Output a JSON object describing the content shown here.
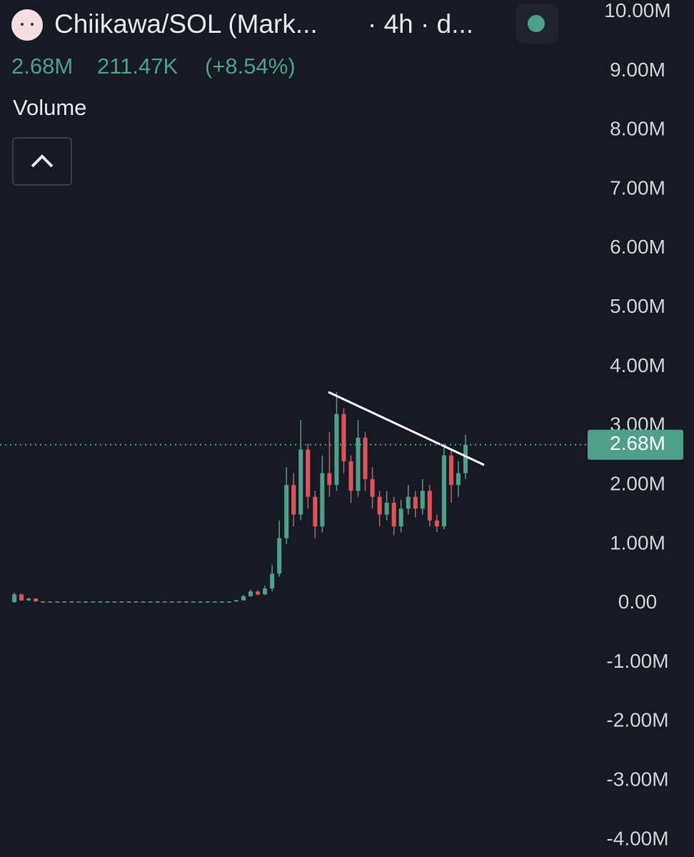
{
  "chart_data": {
    "type": "candlestick",
    "header": {
      "title": "Chiikawa/SOL (Mark...",
      "interval": "· 4h · d...",
      "price": "2.68M",
      "change": "211.47K",
      "change_pct": "(+8.54%)",
      "study": "Volume"
    },
    "up_color": "#4fa08b",
    "down_color": "#e0525a",
    "open": [
      0.02,
      0.15,
      0.05,
      0.08,
      0.03,
      0.03,
      0.03,
      0.03,
      0.03,
      0.03,
      0.03,
      0.03,
      0.03,
      0.03,
      0.03,
      0.03,
      0.03,
      0.03,
      0.03,
      0.03,
      0.03,
      0.03,
      0.03,
      0.03,
      0.03,
      0.03,
      0.03,
      0.03,
      0.03,
      0.03,
      0.03,
      0.03,
      0.05,
      0.12,
      0.2,
      0.15,
      0.25,
      0.5,
      1.1,
      2.0,
      1.5,
      2.6,
      1.8,
      1.3,
      2.2,
      2.0,
      3.2,
      2.4,
      1.9,
      2.8,
      2.1,
      1.8,
      1.5,
      1.7,
      1.3,
      1.6,
      1.8,
      1.6,
      1.9,
      1.4,
      1.3,
      2.5,
      2.0,
      2.2
    ],
    "high": [
      0.18,
      0.16,
      0.09,
      0.085,
      0.035,
      0.035,
      0.035,
      0.035,
      0.035,
      0.035,
      0.035,
      0.035,
      0.035,
      0.035,
      0.035,
      0.035,
      0.035,
      0.035,
      0.035,
      0.035,
      0.035,
      0.035,
      0.035,
      0.035,
      0.035,
      0.035,
      0.035,
      0.035,
      0.035,
      0.035,
      0.035,
      0.06,
      0.14,
      0.23,
      0.22,
      0.3,
      0.65,
      1.4,
      2.3,
      2.2,
      3.1,
      2.7,
      1.9,
      2.5,
      2.9,
      3.57,
      3.3,
      2.5,
      3.1,
      2.9,
      2.3,
      1.9,
      1.9,
      1.8,
      1.75,
      2.0,
      1.9,
      2.1,
      2.0,
      1.5,
      2.7,
      2.6,
      2.4,
      2.85
    ],
    "low": [
      0.01,
      0.04,
      0.04,
      0.025,
      0.025,
      0.025,
      0.025,
      0.025,
      0.025,
      0.025,
      0.025,
      0.025,
      0.025,
      0.025,
      0.025,
      0.025,
      0.025,
      0.025,
      0.025,
      0.025,
      0.025,
      0.025,
      0.025,
      0.025,
      0.025,
      0.025,
      0.025,
      0.025,
      0.025,
      0.025,
      0.025,
      0.025,
      0.045,
      0.11,
      0.13,
      0.14,
      0.2,
      0.45,
      1.0,
      1.3,
      1.4,
      1.6,
      1.1,
      1.2,
      1.8,
      1.9,
      2.2,
      1.7,
      1.8,
      1.9,
      1.6,
      1.3,
      1.4,
      1.15,
      1.2,
      1.5,
      1.45,
      1.5,
      1.3,
      1.2,
      1.25,
      1.7,
      1.8,
      2.1
    ],
    "close": [
      0.15,
      0.05,
      0.08,
      0.03,
      0.03,
      0.03,
      0.03,
      0.03,
      0.03,
      0.03,
      0.03,
      0.03,
      0.03,
      0.03,
      0.03,
      0.03,
      0.03,
      0.03,
      0.03,
      0.03,
      0.03,
      0.03,
      0.03,
      0.03,
      0.03,
      0.03,
      0.03,
      0.03,
      0.03,
      0.03,
      0.03,
      0.05,
      0.12,
      0.2,
      0.15,
      0.25,
      0.5,
      1.1,
      2.0,
      1.5,
      2.6,
      1.8,
      1.3,
      2.2,
      2.0,
      3.2,
      2.4,
      1.9,
      2.8,
      2.1,
      1.8,
      1.5,
      1.7,
      1.3,
      1.6,
      1.8,
      1.6,
      1.9,
      1.4,
      1.3,
      2.5,
      2.0,
      2.2,
      2.68
    ],
    "last_price": {
      "value": 2.68,
      "label": "2.68M"
    },
    "ylim": [
      -4.29,
      10.2
    ],
    "yticks": [
      {
        "value": 10,
        "label": "10.00M"
      },
      {
        "value": 9,
        "label": "9.00M"
      },
      {
        "value": 8,
        "label": "8.00M"
      },
      {
        "value": 7,
        "label": "7.00M"
      },
      {
        "value": 6,
        "label": "6.00M"
      },
      {
        "value": 5,
        "label": "5.00M"
      },
      {
        "value": 4,
        "label": "4.00M"
      },
      {
        "value": 3,
        "label": "3.00M"
      },
      {
        "value": 2,
        "label": "2.00M"
      },
      {
        "value": 1,
        "label": "1.00M"
      },
      {
        "value": 0,
        "label": "0.00"
      },
      {
        "value": -1,
        "label": "-1.00M"
      },
      {
        "value": -2,
        "label": "-2.00M"
      },
      {
        "value": -3,
        "label": "-3.00M"
      },
      {
        "value": -4,
        "label": "-4.00M"
      }
    ]
  }
}
